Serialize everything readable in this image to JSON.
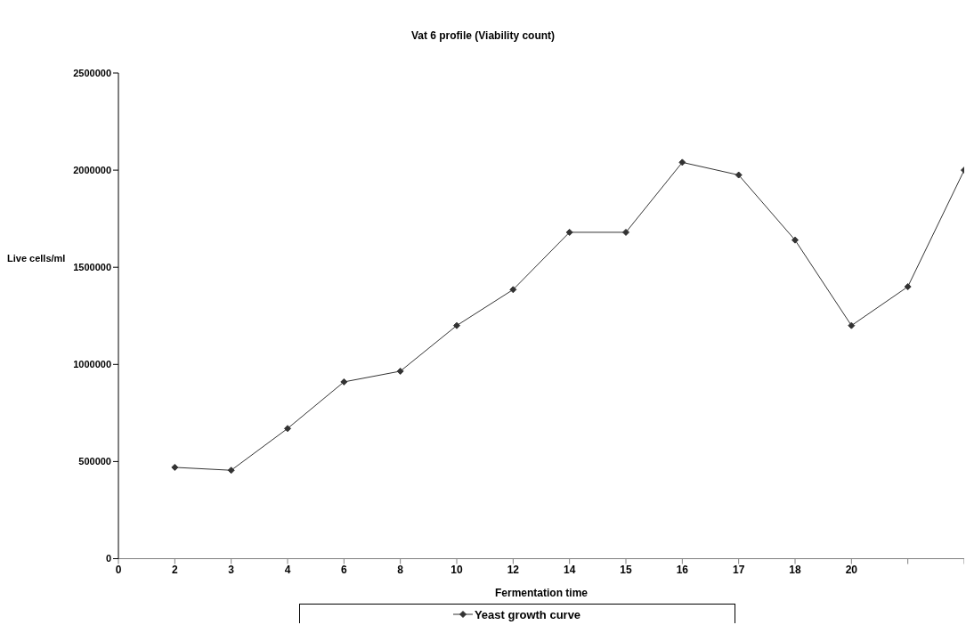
{
  "chart_data": {
    "type": "line",
    "title": "Vat 6 profile (Viability count)",
    "xlabel": "Fermentation time",
    "ylabel": "Live cells/ml",
    "categories": [
      "0",
      "2",
      "3",
      "4",
      "6",
      "8",
      "10",
      "12",
      "14",
      "15",
      "16",
      "17",
      "18",
      "20",
      null,
      null
    ],
    "series": [
      {
        "name": "Yeast growth curve",
        "color": "#333333",
        "values": [
          null,
          470000,
          455000,
          670000,
          910000,
          965000,
          1200000,
          1385000,
          1680000,
          1680000,
          2040000,
          1975000,
          1640000,
          1200000,
          1400000,
          2000000
        ]
      }
    ],
    "ylim": [
      0,
      2500000
    ],
    "yticks": [
      0,
      500000,
      1000000,
      1500000,
      2000000,
      2500000
    ],
    "grid": false,
    "legend": "bottom",
    "marker": "diamond",
    "line_style": "solid"
  }
}
